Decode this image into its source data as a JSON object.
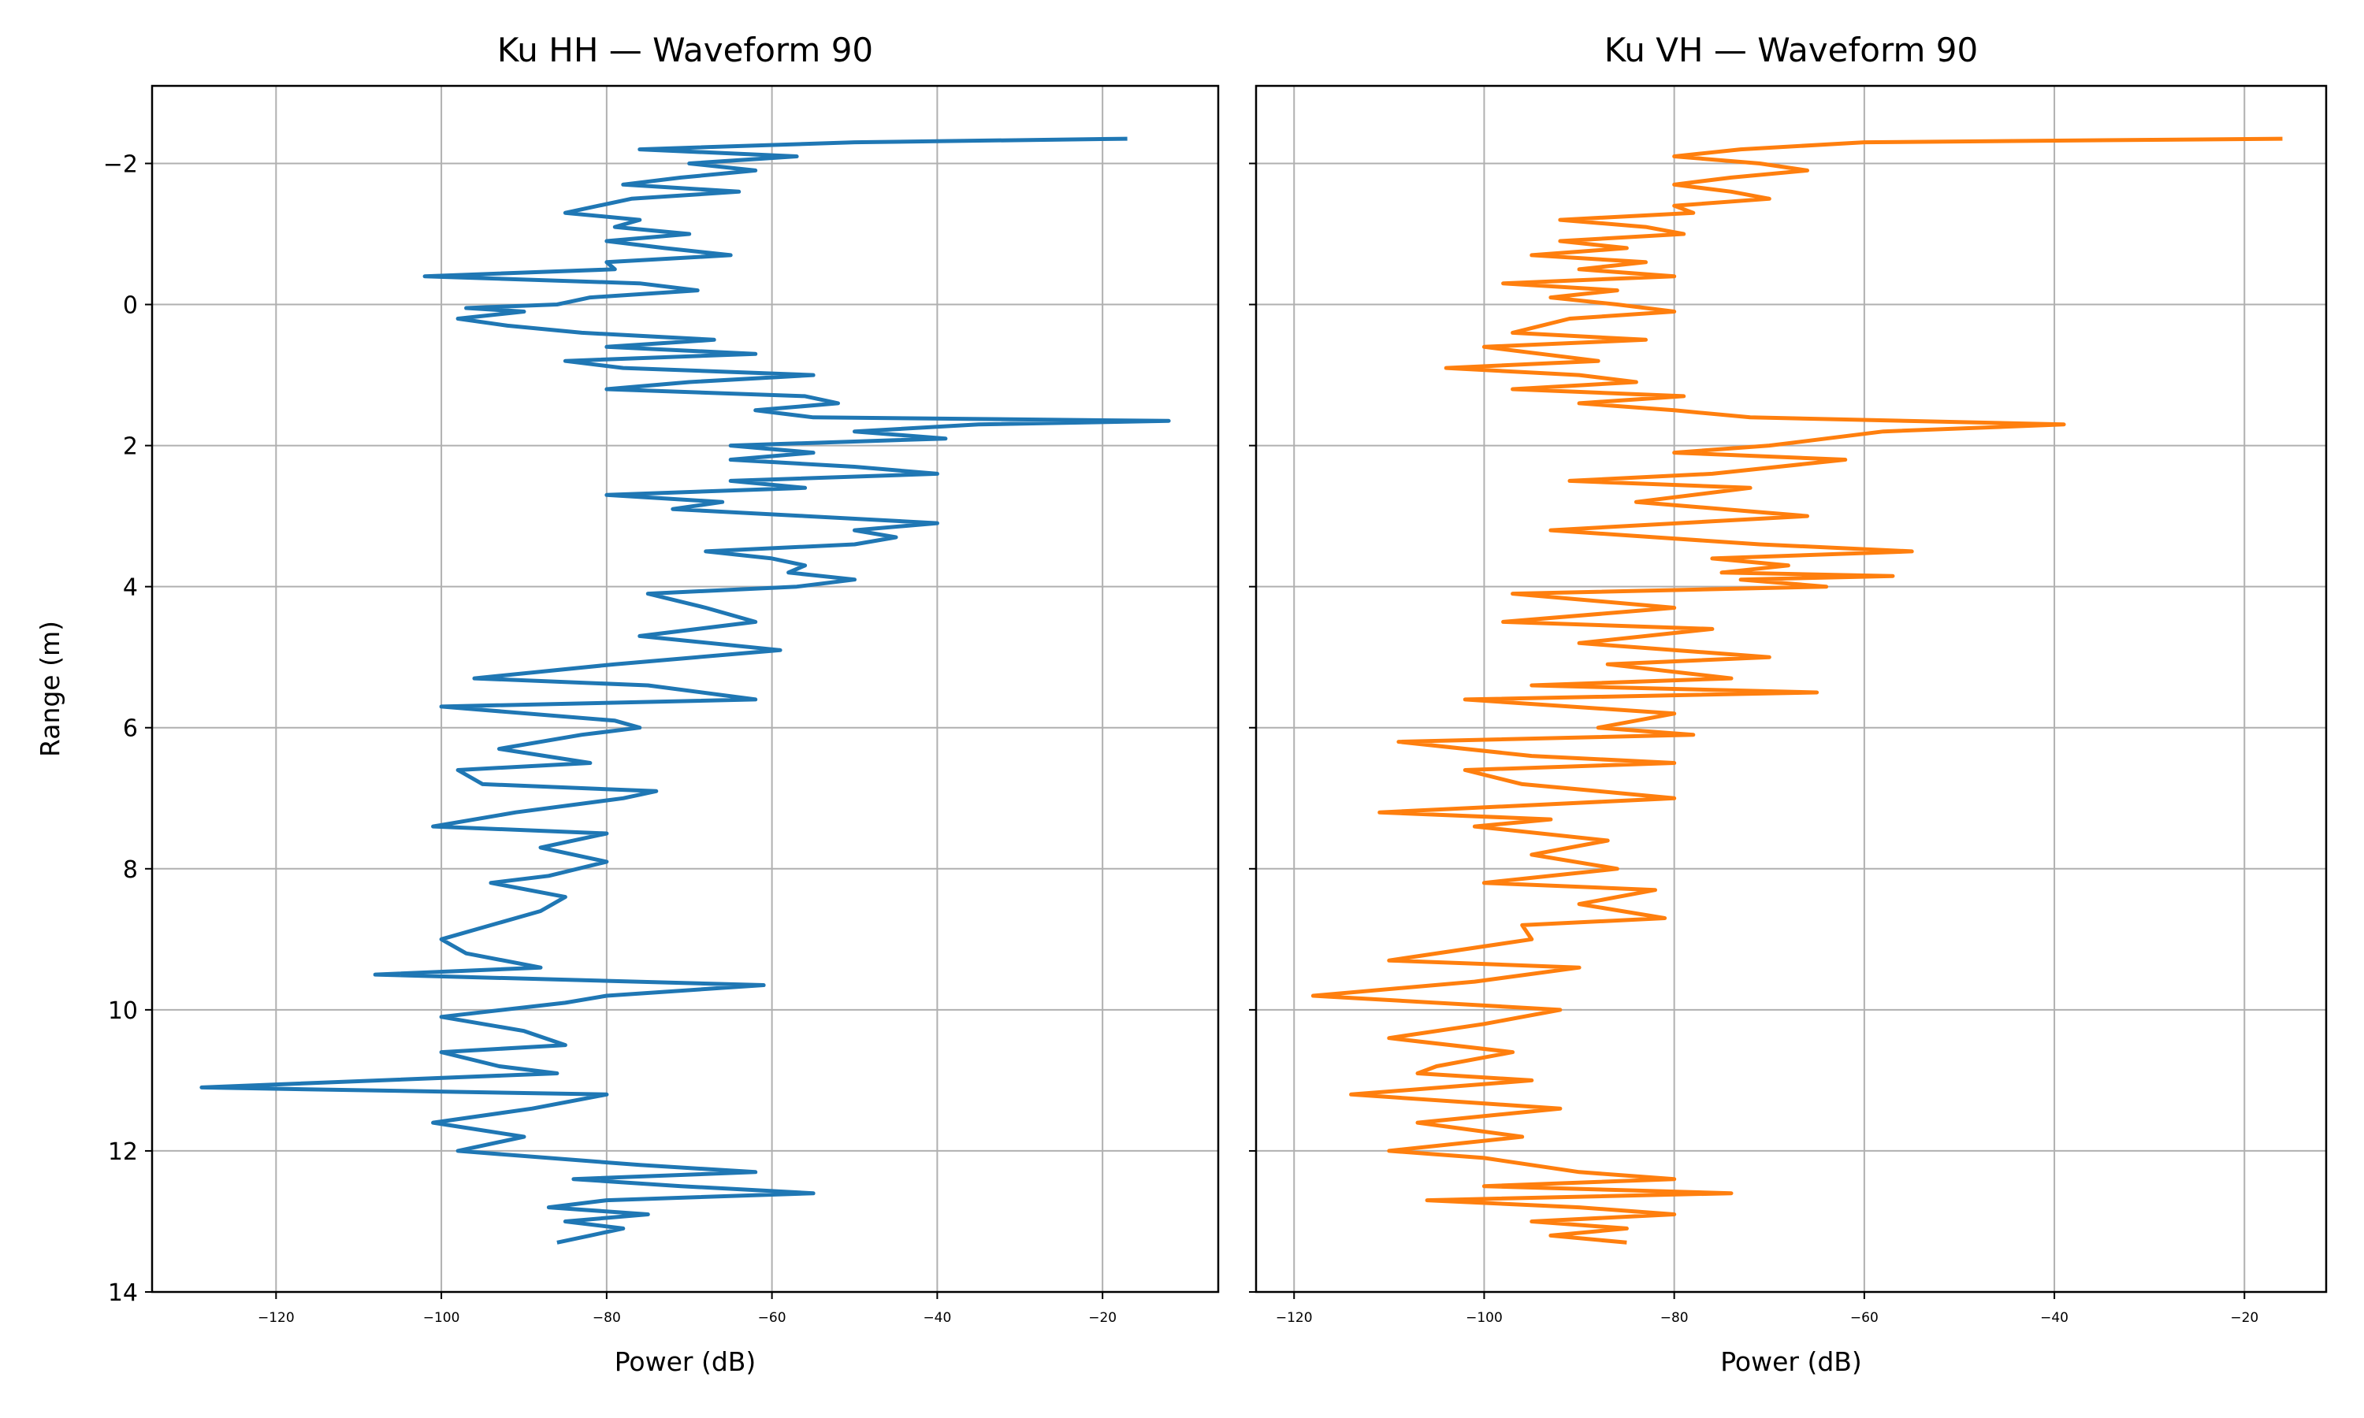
{
  "chart_data": [
    {
      "type": "line",
      "title": "Ku HH — Waveform 90",
      "xlabel": "Power (dB)",
      "ylabel": "Range (m)",
      "xlim": [
        -135,
        -6
      ],
      "ylim": [
        14,
        -3.1
      ],
      "y_inverted": true,
      "grid": true,
      "xticks": [
        -120,
        -100,
        -80,
        -60,
        -40,
        -20
      ],
      "xtick_labels": [
        "−120",
        "−100",
        "−80",
        "−60",
        "−40",
        "−20"
      ],
      "yticks": [
        -2,
        0,
        2,
        4,
        6,
        8,
        10,
        12,
        14
      ],
      "ytick_labels": [
        "−2",
        "0",
        "2",
        "4",
        "6",
        "8",
        "10",
        "12",
        "14"
      ],
      "show_ytick_labels": true,
      "color": "#1f77b4",
      "series": [
        {
          "name": "Ku HH",
          "points": [
            [
              -2.35,
              -17
            ],
            [
              -2.3,
              -50
            ],
            [
              -2.2,
              -76
            ],
            [
              -2.1,
              -57
            ],
            [
              -2.0,
              -70
            ],
            [
              -1.9,
              -62
            ],
            [
              -1.8,
              -71
            ],
            [
              -1.7,
              -78
            ],
            [
              -1.6,
              -64
            ],
            [
              -1.5,
              -77
            ],
            [
              -1.4,
              -81
            ],
            [
              -1.3,
              -85
            ],
            [
              -1.2,
              -76
            ],
            [
              -1.1,
              -79
            ],
            [
              -1.0,
              -70
            ],
            [
              -0.9,
              -80
            ],
            [
              -0.8,
              -73
            ],
            [
              -0.7,
              -65
            ],
            [
              -0.6,
              -80
            ],
            [
              -0.5,
              -79
            ],
            [
              -0.4,
              -102
            ],
            [
              -0.3,
              -76
            ],
            [
              -0.2,
              -69
            ],
            [
              -0.1,
              -82
            ],
            [
              0,
              -86
            ],
            [
              0.05,
              -97
            ],
            [
              0.1,
              -90
            ],
            [
              0.2,
              -98
            ],
            [
              0.3,
              -92
            ],
            [
              0.4,
              -83
            ],
            [
              0.5,
              -67
            ],
            [
              0.6,
              -80
            ],
            [
              0.7,
              -62
            ],
            [
              0.8,
              -85
            ],
            [
              0.9,
              -78
            ],
            [
              1.0,
              -55
            ],
            [
              1.1,
              -70
            ],
            [
              1.2,
              -80
            ],
            [
              1.3,
              -56
            ],
            [
              1.4,
              -52
            ],
            [
              1.5,
              -62
            ],
            [
              1.6,
              -55
            ],
            [
              1.65,
              -12
            ],
            [
              1.7,
              -35
            ],
            [
              1.8,
              -50
            ],
            [
              1.9,
              -39
            ],
            [
              2.0,
              -65
            ],
            [
              2.1,
              -55
            ],
            [
              2.2,
              -65
            ],
            [
              2.3,
              -50
            ],
            [
              2.4,
              -40
            ],
            [
              2.5,
              -65
            ],
            [
              2.6,
              -56
            ],
            [
              2.7,
              -80
            ],
            [
              2.8,
              -66
            ],
            [
              2.9,
              -72
            ],
            [
              3.0,
              -56
            ],
            [
              3.1,
              -40
            ],
            [
              3.2,
              -50
            ],
            [
              3.3,
              -45
            ],
            [
              3.4,
              -50
            ],
            [
              3.5,
              -68
            ],
            [
              3.6,
              -60
            ],
            [
              3.7,
              -56
            ],
            [
              3.8,
              -58
            ],
            [
              3.9,
              -50
            ],
            [
              4.0,
              -57
            ],
            [
              4.1,
              -75
            ],
            [
              4.3,
              -68
            ],
            [
              4.5,
              -62
            ],
            [
              4.7,
              -76
            ],
            [
              4.9,
              -59
            ],
            [
              5.0,
              -69
            ],
            [
              5.1,
              -79
            ],
            [
              5.3,
              -96
            ],
            [
              5.4,
              -75
            ],
            [
              5.6,
              -62
            ],
            [
              5.7,
              -100
            ],
            [
              5.9,
              -79
            ],
            [
              6.0,
              -76
            ],
            [
              6.1,
              -83
            ],
            [
              6.3,
              -93
            ],
            [
              6.5,
              -82
            ],
            [
              6.6,
              -98
            ],
            [
              6.8,
              -95
            ],
            [
              6.9,
              -74
            ],
            [
              7.0,
              -78
            ],
            [
              7.2,
              -91
            ],
            [
              7.4,
              -101
            ],
            [
              7.5,
              -80
            ],
            [
              7.7,
              -88
            ],
            [
              7.9,
              -80
            ],
            [
              8.1,
              -87
            ],
            [
              8.2,
              -94
            ],
            [
              8.4,
              -85
            ],
            [
              8.6,
              -88
            ],
            [
              8.8,
              -94
            ],
            [
              9.0,
              -100
            ],
            [
              9.2,
              -97
            ],
            [
              9.4,
              -88
            ],
            [
              9.5,
              -108
            ],
            [
              9.65,
              -61
            ],
            [
              9.8,
              -80
            ],
            [
              9.9,
              -85
            ],
            [
              10.1,
              -100
            ],
            [
              10.3,
              -90
            ],
            [
              10.5,
              -85
            ],
            [
              10.6,
              -100
            ],
            [
              10.8,
              -93
            ],
            [
              10.9,
              -86
            ],
            [
              11.1,
              -129
            ],
            [
              11.2,
              -80
            ],
            [
              11.4,
              -89
            ],
            [
              11.6,
              -101
            ],
            [
              11.8,
              -90
            ],
            [
              12.0,
              -98
            ],
            [
              12.1,
              -87
            ],
            [
              12.2,
              -76
            ],
            [
              12.3,
              -62
            ],
            [
              12.4,
              -84
            ],
            [
              12.5,
              -71
            ],
            [
              12.6,
              -55
            ],
            [
              12.7,
              -80
            ],
            [
              12.8,
              -87
            ],
            [
              12.9,
              -75
            ],
            [
              13.0,
              -85
            ],
            [
              13.1,
              -78
            ],
            [
              13.2,
              -82
            ],
            [
              13.3,
              -86
            ]
          ]
        }
      ]
    },
    {
      "type": "line",
      "title": "Ku VH — Waveform 90",
      "xlabel": "Power (dB)",
      "ylabel": "",
      "xlim": [
        -124,
        -11.4
      ],
      "ylim": [
        14,
        -3.1
      ],
      "y_inverted": true,
      "grid": true,
      "xticks": [
        -120,
        -100,
        -80,
        -60,
        -40,
        -20
      ],
      "xtick_labels": [
        "−120",
        "−100",
        "−80",
        "−60",
        "−40",
        "−20"
      ],
      "yticks": [
        -2,
        0,
        2,
        4,
        6,
        8,
        10,
        12,
        14
      ],
      "show_ytick_labels": false,
      "color": "#ff7f0e",
      "series": [
        {
          "name": "Ku VH",
          "points": [
            [
              -2.35,
              -16
            ],
            [
              -2.3,
              -60
            ],
            [
              -2.2,
              -73
            ],
            [
              -2.1,
              -80
            ],
            [
              -2.0,
              -71
            ],
            [
              -1.9,
              -66
            ],
            [
              -1.8,
              -74
            ],
            [
              -1.7,
              -80
            ],
            [
              -1.6,
              -74
            ],
            [
              -1.5,
              -70
            ],
            [
              -1.4,
              -80
            ],
            [
              -1.3,
              -78
            ],
            [
              -1.2,
              -92
            ],
            [
              -1.1,
              -83
            ],
            [
              -1.0,
              -79
            ],
            [
              -0.9,
              -92
            ],
            [
              -0.8,
              -85
            ],
            [
              -0.7,
              -95
            ],
            [
              -0.6,
              -83
            ],
            [
              -0.5,
              -90
            ],
            [
              -0.4,
              -80
            ],
            [
              -0.3,
              -98
            ],
            [
              -0.2,
              -86
            ],
            [
              -0.1,
              -93
            ],
            [
              0,
              -86
            ],
            [
              0.1,
              -80
            ],
            [
              0.2,
              -91
            ],
            [
              0.4,
              -97
            ],
            [
              0.5,
              -83
            ],
            [
              0.6,
              -100
            ],
            [
              0.8,
              -88
            ],
            [
              0.9,
              -104
            ],
            [
              1.0,
              -90
            ],
            [
              1.1,
              -84
            ],
            [
              1.2,
              -97
            ],
            [
              1.3,
              -79
            ],
            [
              1.4,
              -90
            ],
            [
              1.5,
              -80
            ],
            [
              1.6,
              -72
            ],
            [
              1.7,
              -39
            ],
            [
              1.8,
              -58
            ],
            [
              1.9,
              -64
            ],
            [
              2.0,
              -70
            ],
            [
              2.1,
              -80
            ],
            [
              2.2,
              -62
            ],
            [
              2.4,
              -76
            ],
            [
              2.5,
              -91
            ],
            [
              2.6,
              -72
            ],
            [
              2.8,
              -84
            ],
            [
              3.0,
              -66
            ],
            [
              3.2,
              -93
            ],
            [
              3.4,
              -71
            ],
            [
              3.5,
              -55
            ],
            [
              3.6,
              -76
            ],
            [
              3.7,
              -68
            ],
            [
              3.8,
              -75
            ],
            [
              3.85,
              -57
            ],
            [
              3.9,
              -73
            ],
            [
              4.0,
              -64
            ],
            [
              4.1,
              -97
            ],
            [
              4.3,
              -80
            ],
            [
              4.5,
              -98
            ],
            [
              4.6,
              -76
            ],
            [
              4.8,
              -90
            ],
            [
              5.0,
              -70
            ],
            [
              5.1,
              -87
            ],
            [
              5.3,
              -74
            ],
            [
              5.4,
              -95
            ],
            [
              5.5,
              -65
            ],
            [
              5.6,
              -102
            ],
            [
              5.8,
              -80
            ],
            [
              6.0,
              -88
            ],
            [
              6.1,
              -78
            ],
            [
              6.2,
              -109
            ],
            [
              6.4,
              -95
            ],
            [
              6.5,
              -80
            ],
            [
              6.6,
              -102
            ],
            [
              6.8,
              -96
            ],
            [
              6.9,
              -88
            ],
            [
              7.0,
              -80
            ],
            [
              7.2,
              -111
            ],
            [
              7.3,
              -93
            ],
            [
              7.4,
              -101
            ],
            [
              7.6,
              -87
            ],
            [
              7.8,
              -95
            ],
            [
              8.0,
              -86
            ],
            [
              8.2,
              -100
            ],
            [
              8.3,
              -82
            ],
            [
              8.5,
              -90
            ],
            [
              8.7,
              -81
            ],
            [
              8.8,
              -96
            ],
            [
              9.0,
              -95
            ],
            [
              9.3,
              -110
            ],
            [
              9.4,
              -90
            ],
            [
              9.6,
              -101
            ],
            [
              9.8,
              -118
            ],
            [
              10.0,
              -92
            ],
            [
              10.2,
              -100
            ],
            [
              10.4,
              -110
            ],
            [
              10.6,
              -97
            ],
            [
              10.8,
              -105
            ],
            [
              10.9,
              -107
            ],
            [
              11.0,
              -95
            ],
            [
              11.2,
              -114
            ],
            [
              11.4,
              -92
            ],
            [
              11.6,
              -107
            ],
            [
              11.8,
              -96
            ],
            [
              12.0,
              -110
            ],
            [
              12.1,
              -100
            ],
            [
              12.3,
              -90
            ],
            [
              12.4,
              -80
            ],
            [
              12.5,
              -100
            ],
            [
              12.6,
              -74
            ],
            [
              12.7,
              -106
            ],
            [
              12.8,
              -90
            ],
            [
              12.9,
              -80
            ],
            [
              13.0,
              -95
            ],
            [
              13.1,
              -85
            ],
            [
              13.2,
              -93
            ],
            [
              13.3,
              -85
            ]
          ]
        }
      ]
    }
  ]
}
